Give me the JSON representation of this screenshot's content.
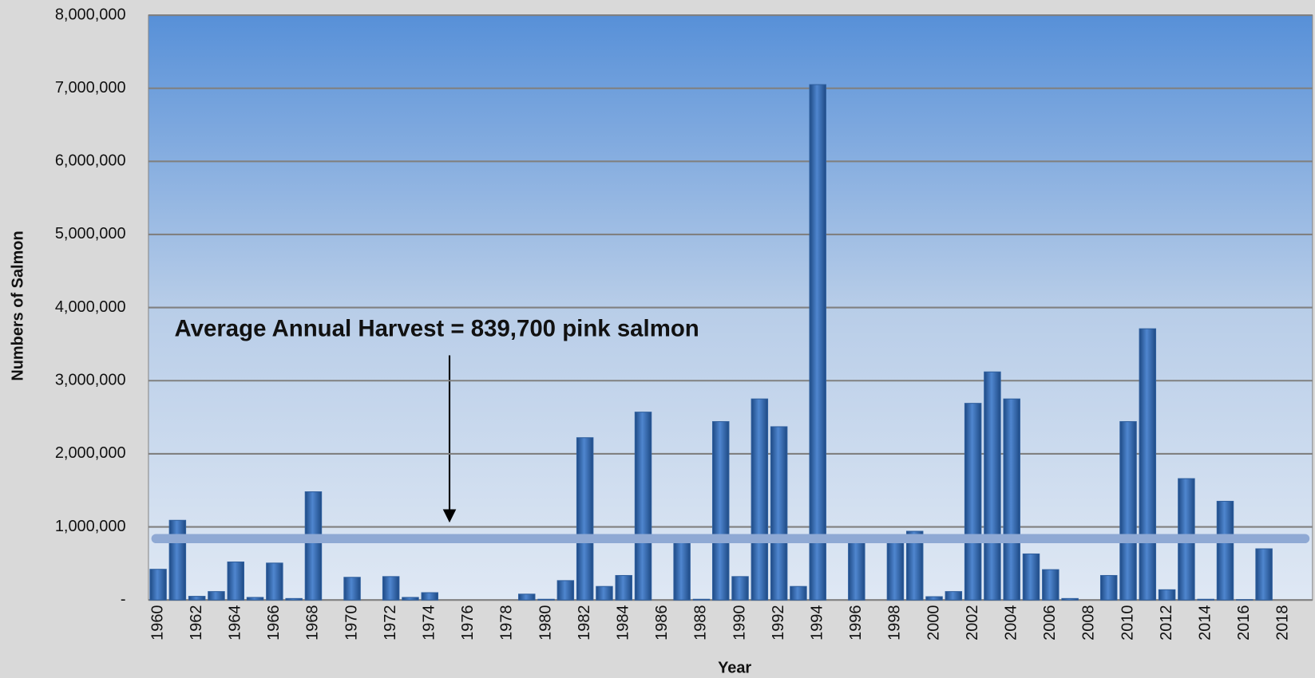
{
  "chart_data": {
    "type": "bar",
    "x_label": "Year",
    "y_label": "Numbers of Salmon",
    "annotation": "Average Annual Harvest = 839,700 pink salmon",
    "average": 839700,
    "categories": [
      "1960",
      null,
      "1962",
      null,
      "1964",
      null,
      "1966",
      null,
      "1968",
      null,
      "1970",
      null,
      "1972",
      null,
      "1974",
      null,
      "1976",
      null,
      "1978",
      null,
      "1980",
      null,
      "1982",
      null,
      "1984",
      null,
      "1986",
      null,
      "1988",
      null,
      "1990",
      null,
      "1992",
      null,
      "1994",
      null,
      "1996",
      null,
      "1998",
      null,
      "2000",
      null,
      "2002",
      null,
      "2004",
      null,
      "2006",
      null,
      "2008",
      null,
      "2010",
      null,
      "2012",
      null,
      "2014",
      null,
      "2016",
      null,
      "2018",
      null
    ],
    "values": [
      420000,
      1090000,
      50000,
      115000,
      520000,
      35000,
      505000,
      20000,
      1480000,
      0,
      310000,
      0,
      320000,
      35000,
      100000,
      0,
      0,
      0,
      0,
      80000,
      10000,
      265000,
      2220000,
      185000,
      335000,
      2570000,
      0,
      800000,
      10000,
      2440000,
      320000,
      2750000,
      2370000,
      185000,
      7050000,
      0,
      800000,
      0,
      800000,
      940000,
      45000,
      115000,
      2690000,
      3120000,
      2750000,
      630000,
      415000,
      20000,
      0,
      335000,
      2440000,
      3710000,
      140000,
      1660000,
      10000,
      1350000,
      5000,
      700000,
      0,
      0
    ],
    "color": "#2f5f9e",
    "average_color": "#8fa9d4",
    "ylim": [
      0,
      8000000
    ],
    "yticks": [
      {
        "value": 0,
        "label": "-"
      },
      {
        "value": 1000000,
        "label": "1,000,000"
      },
      {
        "value": 2000000,
        "label": "2,000,000"
      },
      {
        "value": 3000000,
        "label": "3,000,000"
      },
      {
        "value": 4000000,
        "label": "4,000,000"
      },
      {
        "value": 5000000,
        "label": "5,000,000"
      },
      {
        "value": 6000000,
        "label": "6,000,000"
      },
      {
        "value": 7000000,
        "label": "7,000,000"
      },
      {
        "value": 8000000,
        "label": "8,000,000"
      }
    ],
    "grid": true
  }
}
